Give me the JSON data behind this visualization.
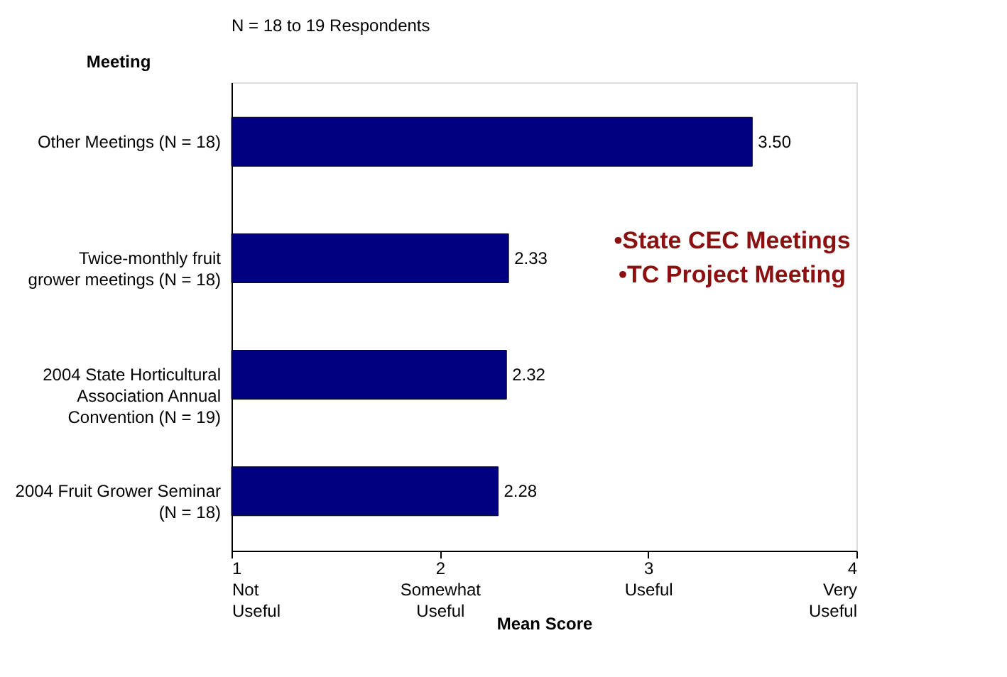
{
  "chart_data": {
    "type": "bar",
    "orientation": "horizontal",
    "title": "N = 18 to 19 Respondents",
    "ylabel": "Meeting",
    "xlabel": "Mean Score",
    "categories": [
      "Other Meetings (N = 18)",
      "Twice-monthly fruit grower meetings (N = 18)",
      "2004 State Horticultural Association Annual Convention (N = 19)",
      "2004 Fruit Grower Seminar (N = 18)"
    ],
    "values": [
      3.5,
      2.33,
      2.32,
      2.28
    ],
    "value_labels": [
      "3.50",
      "2.33",
      "2.32",
      "2.28"
    ],
    "color": "#000080",
    "xlim": [
      1,
      4
    ],
    "xticks": [
      {
        "value": 1,
        "label": "1\nNot\nUseful"
      },
      {
        "value": 2,
        "label": "2\nSomewhat\nUseful"
      },
      {
        "value": 3,
        "label": "3\nUseful"
      },
      {
        "value": 4,
        "label": "4\nVery\nUseful"
      }
    ],
    "grid": false,
    "annotations": [
      "•State CEC Meetings",
      "•TC Project Meeting"
    ]
  }
}
